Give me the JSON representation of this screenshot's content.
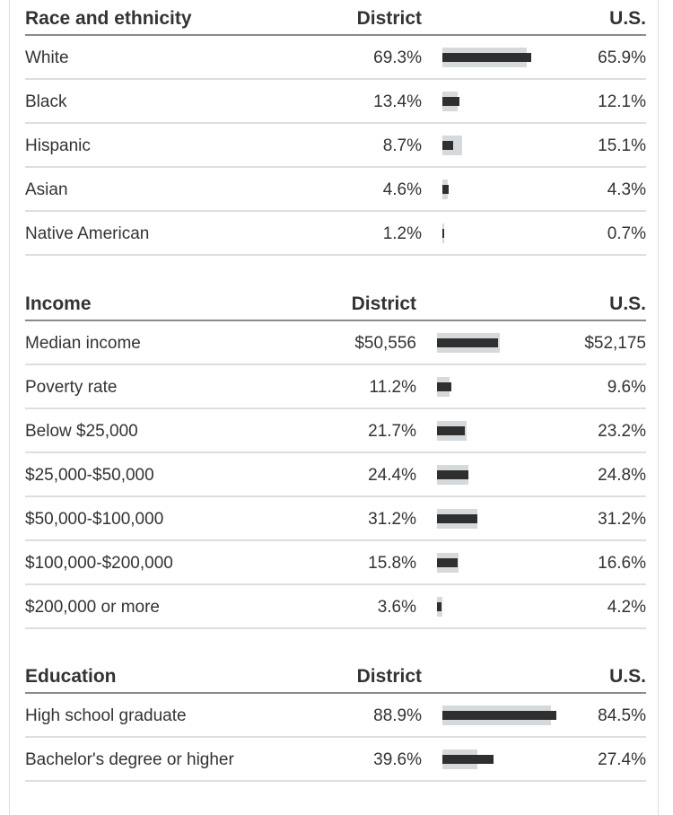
{
  "tables": [
    {
      "key": "race",
      "title": "Race and ethnicity",
      "col_district": "District",
      "col_us": "U.S.",
      "rows": [
        {
          "label": "White",
          "district": "69.3%",
          "us": "65.9%",
          "district_value": 69.3,
          "us_value": 65.9
        },
        {
          "label": "Black",
          "district": "13.4%",
          "us": "12.1%",
          "district_value": 13.4,
          "us_value": 12.1
        },
        {
          "label": "Hispanic",
          "district": "8.7%",
          "us": "15.1%",
          "district_value": 8.7,
          "us_value": 15.1
        },
        {
          "label": "Asian",
          "district": "4.6%",
          "us": "4.3%",
          "district_value": 4.6,
          "us_value": 4.3
        },
        {
          "label": "Native American",
          "district": "1.2%",
          "us": "0.7%",
          "district_value": 1.2,
          "us_value": 0.7
        }
      ]
    },
    {
      "key": "income",
      "title": "Income",
      "col_district": "District",
      "col_us": "U.S.",
      "rows": [
        {
          "label": "Median income",
          "district": "$50,556",
          "us": "$52,175",
          "district_value": 50556,
          "us_value": 52175,
          "scale_max": 52175
        },
        {
          "label": "Poverty rate",
          "district": "11.2%",
          "us": "9.6%",
          "district_value": 11.2,
          "us_value": 9.6
        },
        {
          "label": "Below $25,000",
          "district": "21.7%",
          "us": "23.2%",
          "district_value": 21.7,
          "us_value": 23.2
        },
        {
          "label": "$25,000-$50,000",
          "district": "24.4%",
          "us": "24.8%",
          "district_value": 24.4,
          "us_value": 24.8
        },
        {
          "label": "$50,000-$100,000",
          "district": "31.2%",
          "us": "31.2%",
          "district_value": 31.2,
          "us_value": 31.2
        },
        {
          "label": "$100,000-$200,000",
          "district": "15.8%",
          "us": "16.6%",
          "district_value": 15.8,
          "us_value": 16.6
        },
        {
          "label": "$200,000 or more",
          "district": "3.6%",
          "us": "4.2%",
          "district_value": 3.6,
          "us_value": 4.2
        }
      ]
    },
    {
      "key": "education",
      "title": "Education",
      "col_district": "District",
      "col_us": "U.S.",
      "rows": [
        {
          "label": "High school graduate",
          "district": "88.9%",
          "us": "84.5%",
          "district_value": 88.9,
          "us_value": 84.5
        },
        {
          "label": "Bachelor's degree or higher",
          "district": "39.6%",
          "us": "27.4%",
          "district_value": 39.6,
          "us_value": 27.4
        }
      ]
    }
  ],
  "colors": {
    "district_bar": "#2f2f2f",
    "us_bar": "#d5d9db",
    "header_rule": "#8a8a8a",
    "row_rule": "#dedede"
  }
}
